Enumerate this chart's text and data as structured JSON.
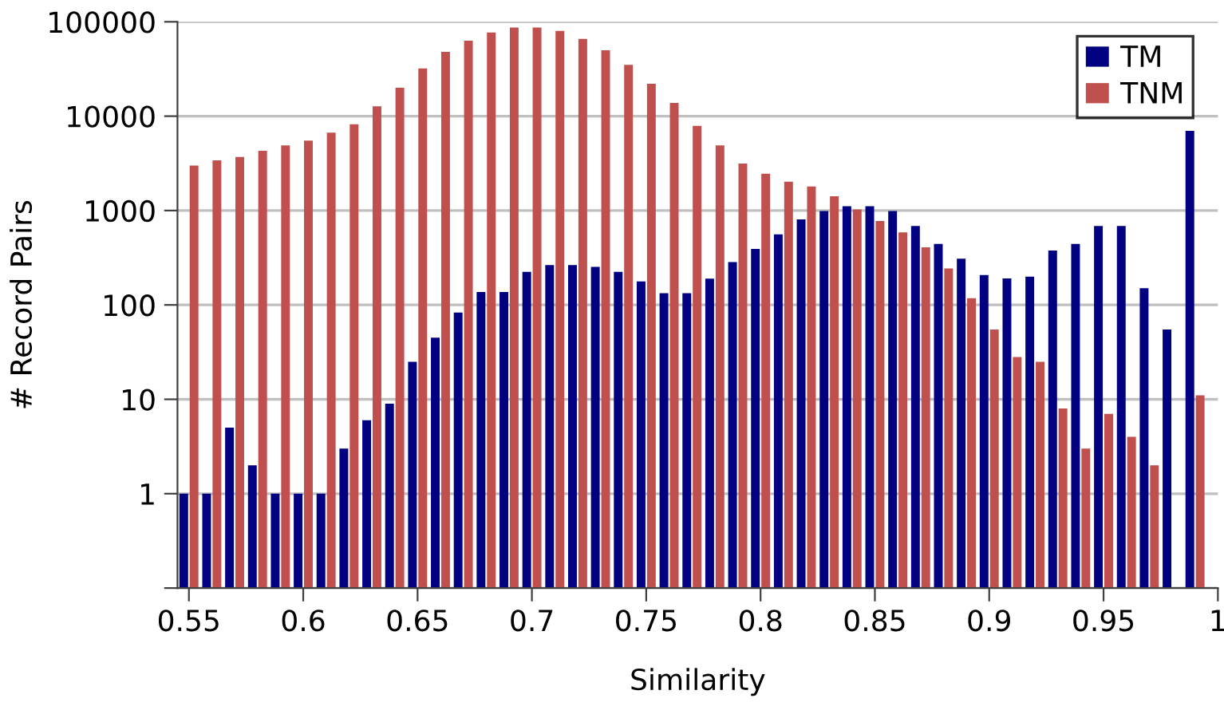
{
  "chart_data": {
    "type": "bar",
    "xlabel": "Similarity",
    "ylabel": "# Record Pairs",
    "x": [
      0.55,
      0.56,
      0.57,
      0.58,
      0.59,
      0.6,
      0.61,
      0.62,
      0.63,
      0.64,
      0.65,
      0.66,
      0.67,
      0.68,
      0.69,
      0.7,
      0.71,
      0.72,
      0.73,
      0.74,
      0.75,
      0.76,
      0.77,
      0.78,
      0.79,
      0.8,
      0.81,
      0.82,
      0.83,
      0.84,
      0.85,
      0.86,
      0.87,
      0.88,
      0.89,
      0.9,
      0.91,
      0.92,
      0.93,
      0.94,
      0.95,
      0.96,
      0.97,
      0.98,
      0.99
    ],
    "series": [
      {
        "name": "TM",
        "color": "#000080",
        "values": [
          1,
          1,
          5,
          2,
          1,
          1,
          1,
          3,
          6,
          9,
          25,
          45,
          83,
          137,
          137,
          224,
          264,
          264,
          253,
          224,
          177,
          133,
          133,
          190,
          285,
          393,
          560,
          807,
          986,
          1110,
          1110,
          986,
          687,
          443,
          309,
          207,
          191,
          199,
          377,
          443,
          687,
          687,
          150,
          55,
          7000
        ]
      },
      {
        "name": "TNM",
        "color": "#c0504d",
        "values": [
          3000,
          3400,
          3700,
          4300,
          4900,
          5500,
          6700,
          8200,
          12700,
          20000,
          32000,
          48000,
          63000,
          77000,
          87000,
          87000,
          80000,
          66000,
          50000,
          35000,
          22000,
          13800,
          7900,
          4900,
          3150,
          2460,
          2020,
          1800,
          1420,
          1030,
          775,
          587,
          408,
          243,
          118,
          55,
          28,
          25,
          8,
          3,
          7,
          4,
          2,
          null,
          11
        ]
      }
    ],
    "log": "y",
    "xlim": [
      0.545,
      1.0
    ],
    "xticks": [
      0.55,
      0.6,
      0.65,
      0.7,
      0.75,
      0.8,
      0.85,
      0.9,
      0.95,
      1
    ],
    "ylim": [
      0.1,
      100000
    ],
    "yticks": [
      {
        "value": 0.1,
        "label": null
      },
      1,
      10,
      100,
      1000,
      10000,
      100000
    ],
    "grid": "y",
    "legend": "top right"
  }
}
